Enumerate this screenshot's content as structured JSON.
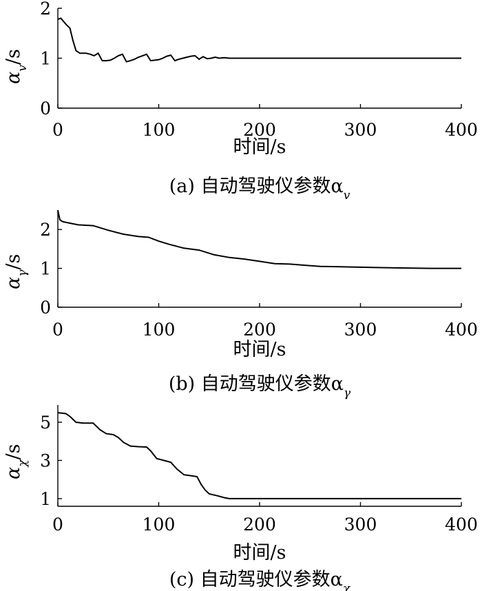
{
  "chart_data": [
    {
      "type": "line",
      "caption": "(a) 自动驾驶仪参数α",
      "caption_sub": "v",
      "xlabel": "时间/s",
      "ylabel": "α",
      "ylabel_sub": "v",
      "ylabel_unit": "/s",
      "xlim": [
        0,
        400
      ],
      "ylim": [
        0,
        2
      ],
      "xticks": [
        0,
        100,
        200,
        300,
        400
      ],
      "yticks": [
        0,
        1,
        2
      ],
      "series": [
        {
          "x": [
            0,
            3,
            8,
            12,
            15,
            18,
            22,
            28,
            32,
            36,
            40,
            44,
            48,
            52,
            56,
            60,
            64,
            68,
            72,
            76,
            80,
            84,
            88,
            92,
            96,
            100,
            104,
            108,
            112,
            116,
            120,
            124,
            128,
            132,
            136,
            140,
            144,
            148,
            152,
            156,
            160,
            165,
            170,
            200,
            250,
            300,
            400
          ],
          "y": [
            1.78,
            1.8,
            1.68,
            1.6,
            1.35,
            1.15,
            1.1,
            1.1,
            1.08,
            1.05,
            1.1,
            0.95,
            0.95,
            0.96,
            1.0,
            1.05,
            1.08,
            0.93,
            0.95,
            0.98,
            1.02,
            1.05,
            1.08,
            0.95,
            0.96,
            0.97,
            1.0,
            1.04,
            1.06,
            0.95,
            0.98,
            1.0,
            1.02,
            1.04,
            1.05,
            0.98,
            1.03,
            0.99,
            1.0,
            1.02,
            1.0,
            1.01,
            1.0,
            1.0,
            1.0,
            1.0,
            1.0
          ]
        }
      ]
    },
    {
      "type": "line",
      "caption": "(b) 自动驾驶仪参数α",
      "caption_sub": "γ",
      "xlabel": "时间/s",
      "ylabel": "α",
      "ylabel_sub": "γ",
      "ylabel_unit": "/s",
      "xlim": [
        0,
        400
      ],
      "ylim": [
        0,
        2.5
      ],
      "xticks": [
        0,
        100,
        200,
        300,
        400
      ],
      "yticks": [
        0,
        1,
        2
      ],
      "series": [
        {
          "x": [
            0,
            2,
            5,
            20,
            35,
            50,
            65,
            80,
            90,
            100,
            110,
            125,
            140,
            155,
            170,
            185,
            200,
            215,
            230,
            245,
            260,
            280,
            300,
            320,
            340,
            370,
            400
          ],
          "y": [
            2.5,
            2.25,
            2.2,
            2.12,
            2.1,
            1.98,
            1.88,
            1.82,
            1.8,
            1.7,
            1.62,
            1.52,
            1.47,
            1.35,
            1.28,
            1.24,
            1.18,
            1.12,
            1.11,
            1.08,
            1.05,
            1.04,
            1.03,
            1.02,
            1.01,
            1.0,
            1.0
          ]
        }
      ]
    },
    {
      "type": "line",
      "caption": "(c) 自动驾驶仪参数α",
      "caption_sub": "χ",
      "xlabel": "时间/s",
      "ylabel": "α",
      "ylabel_sub": "χ",
      "ylabel_unit": "/s",
      "xlim": [
        0,
        400
      ],
      "ylim": [
        0.6,
        5.9
      ],
      "xticks": [
        0,
        100,
        200,
        300,
        400
      ],
      "yticks": [
        1,
        3,
        5
      ],
      "series": [
        {
          "x": [
            0,
            8,
            12,
            18,
            25,
            35,
            42,
            48,
            55,
            60,
            65,
            72,
            80,
            88,
            92,
            98,
            105,
            112,
            118,
            125,
            132,
            138,
            142,
            146,
            150,
            158,
            165,
            170,
            200,
            250,
            300,
            350,
            400
          ],
          "y": [
            5.5,
            5.45,
            5.3,
            5.0,
            4.95,
            4.95,
            4.6,
            4.4,
            4.35,
            4.2,
            3.95,
            3.75,
            3.72,
            3.7,
            3.5,
            3.1,
            3.0,
            2.9,
            2.55,
            2.25,
            2.2,
            2.15,
            1.75,
            1.45,
            1.25,
            1.15,
            1.05,
            1.0,
            1.0,
            1.0,
            1.0,
            1.0,
            1.0
          ]
        }
      ]
    }
  ]
}
